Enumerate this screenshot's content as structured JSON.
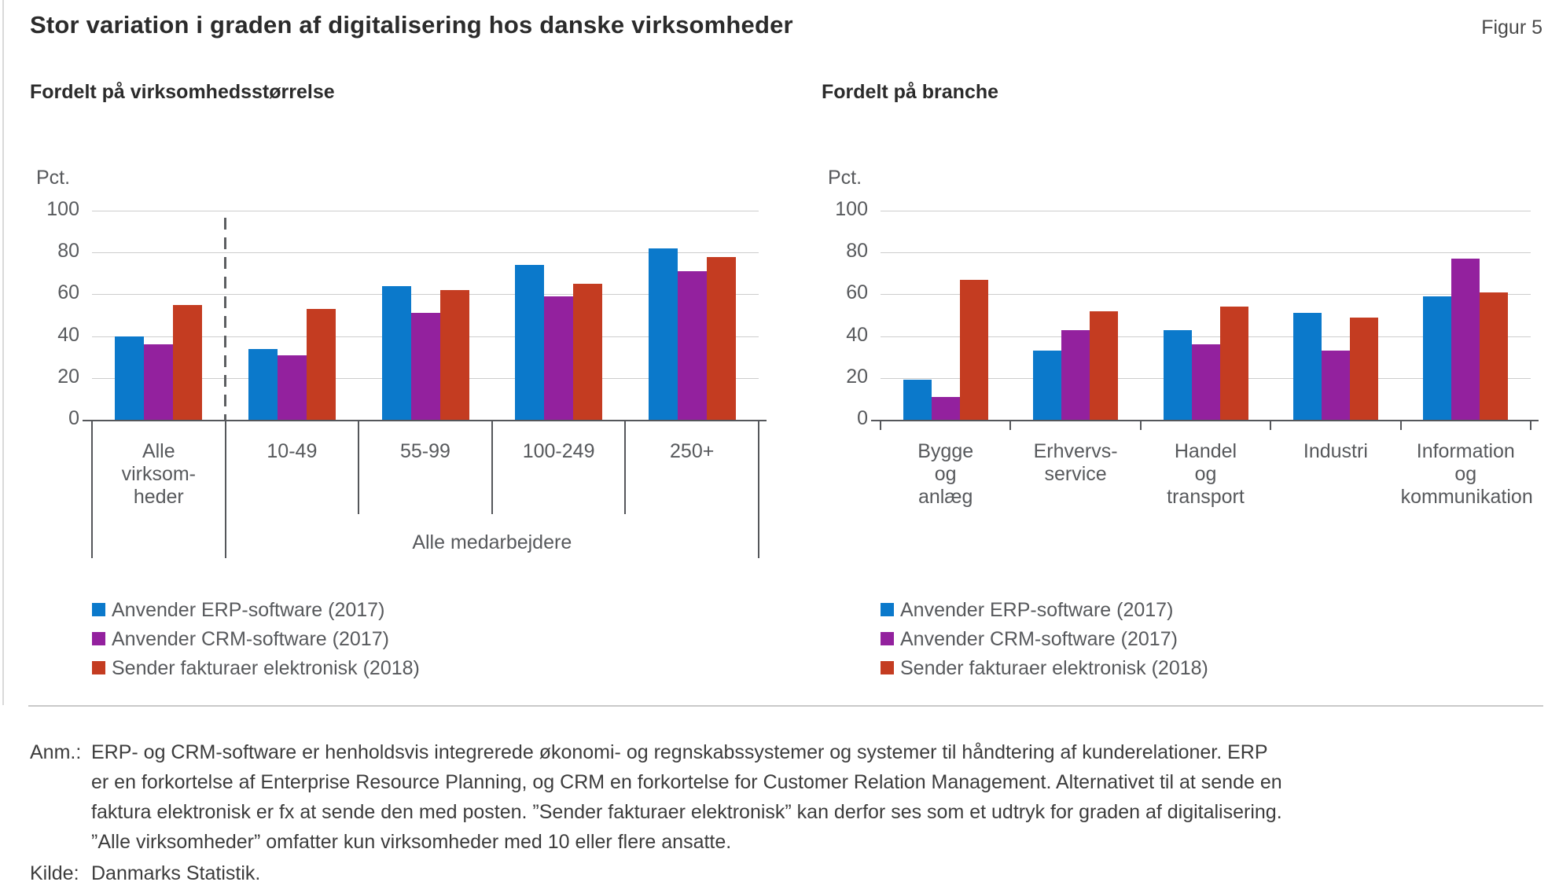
{
  "header": {
    "title": "Stor variation i graden af digitalisering hos danske virksomheder",
    "figure_label": "Figur 5"
  },
  "chart_data": [
    {
      "type": "bar",
      "title": "Fordelt på virksomhedsstørrelse",
      "unit_label": "Pct.",
      "ylim": [
        0,
        100
      ],
      "y_ticks": [
        100,
        80,
        60,
        40,
        20,
        0
      ],
      "grid": true,
      "legend_position": "bottom-left",
      "categories": [
        "Alle virksomheder",
        "10-49",
        "55-99",
        "100-249",
        "250+"
      ],
      "category_lines": [
        [
          "Alle",
          "virksom-",
          "heder"
        ],
        [
          "10-49"
        ],
        [
          "55-99"
        ],
        [
          "100-249"
        ],
        [
          "250+"
        ]
      ],
      "series": [
        {
          "name": "Anvender ERP-software (2017)",
          "color": "#0b79cb",
          "values": [
            40,
            34,
            64,
            74,
            82
          ]
        },
        {
          "name": "Anvender CRM-software (2017)",
          "color": "#93219e",
          "values": [
            36,
            31,
            51,
            59,
            71
          ]
        },
        {
          "name": "Sender fakturaer elektronisk (2018)",
          "color": "#c43c21",
          "values": [
            55,
            53,
            62,
            65,
            78
          ]
        }
      ],
      "divider_after_category": 0,
      "group_bracket": {
        "label": "Alle medarbejdere",
        "from_category": 1,
        "to_category": 4
      }
    },
    {
      "type": "bar",
      "title": "Fordelt på branche",
      "unit_label": "Pct.",
      "ylim": [
        0,
        100
      ],
      "y_ticks": [
        100,
        80,
        60,
        40,
        20,
        0
      ],
      "grid": true,
      "legend_position": "bottom-left",
      "categories": [
        "Bygge og anlæg",
        "Erhvervs-service",
        "Handel og transport",
        "Industri",
        "Information og kommunikation"
      ],
      "category_lines": [
        [
          "Bygge",
          "og",
          "anlæg"
        ],
        [
          "Erhvervs-",
          "service"
        ],
        [
          "Handel",
          "og",
          "transport"
        ],
        [
          "Industri"
        ],
        [
          "Information",
          "og",
          "kommunikation"
        ]
      ],
      "series": [
        {
          "name": "Anvender ERP-software (2017)",
          "color": "#0b79cb",
          "values": [
            19,
            33,
            43,
            51,
            59
          ]
        },
        {
          "name": "Anvender CRM-software (2017)",
          "color": "#93219e",
          "values": [
            11,
            43,
            36,
            33,
            77
          ]
        },
        {
          "name": "Sender fakturaer elektronisk (2018)",
          "color": "#c43c21",
          "values": [
            67,
            52,
            54,
            49,
            61
          ]
        }
      ]
    }
  ],
  "footer": {
    "note_label": "Anm.:",
    "note_lines": [
      "ERP- og CRM-software er henholdsvis integrerede økonomi- og regnskabssystemer og systemer til håndtering af kunderelationer. ERP",
      "er en forkortelse af Enterprise Resource Planning, og CRM en forkortelse for Customer Relation Management. Alternativet til at sende en",
      "faktura elektronisk er fx at sende den med posten. ”Sender fakturaer elektronisk” kan derfor ses som et udtryk for graden af digitalisering.",
      "”Alle virksomheder” omfatter kun virksomheder med 10 eller flere ansatte."
    ],
    "source_label": "Kilde:",
    "source_text": "Danmarks Statistik."
  },
  "colors": {
    "erp_blue": "#0b79cb",
    "crm_purple": "#93219e",
    "invoice_red": "#c43c21",
    "gridline_gray": "#cdcdcd",
    "axis_gray": "#55575b"
  }
}
